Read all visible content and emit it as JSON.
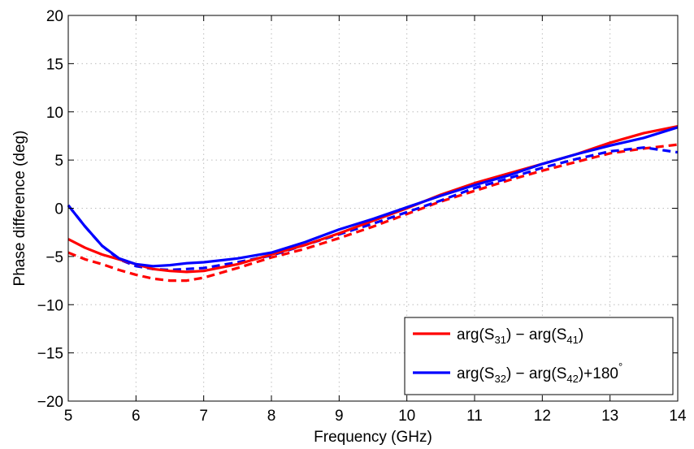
{
  "chart_data": {
    "type": "line",
    "xlabel": "Frequency (GHz)",
    "ylabel": "Phase difference (deg)",
    "xlim": [
      5,
      14
    ],
    "ylim": [
      -20,
      20
    ],
    "x_ticks": [
      5,
      6,
      7,
      8,
      9,
      10,
      11,
      12,
      13,
      14
    ],
    "y_ticks": [
      -20,
      -15,
      -10,
      -5,
      0,
      5,
      10,
      15,
      20
    ],
    "x_tick_labels": [
      "5",
      "6",
      "7",
      "8",
      "9",
      "10",
      "11",
      "12",
      "13",
      "14"
    ],
    "y_tick_labels": [
      "−20",
      "−15",
      "−10",
      "−5",
      "0",
      "5",
      "10",
      "15",
      "20"
    ],
    "grid": true,
    "legend_position": "bottom-right",
    "series": [
      {
        "id": "red-solid",
        "color": "#ff0000",
        "style": "solid",
        "in_legend": true,
        "x": [
          5.0,
          5.25,
          5.5,
          5.75,
          6.0,
          6.25,
          6.5,
          6.75,
          7.0,
          7.5,
          8.0,
          8.5,
          9.0,
          9.5,
          10.0,
          10.5,
          11.0,
          11.5,
          12.0,
          12.5,
          13.0,
          13.5,
          14.0
        ],
        "y": [
          -3.2,
          -4.1,
          -4.8,
          -5.3,
          -5.8,
          -6.3,
          -6.5,
          -6.6,
          -6.5,
          -5.8,
          -4.8,
          -3.8,
          -2.6,
          -1.3,
          0.0,
          1.4,
          2.6,
          3.6,
          4.6,
          5.6,
          6.8,
          7.8,
          8.5
        ]
      },
      {
        "id": "blue-solid",
        "color": "#0000ff",
        "style": "solid",
        "in_legend": true,
        "x": [
          5.0,
          5.25,
          5.5,
          5.75,
          6.0,
          6.25,
          6.5,
          6.75,
          7.0,
          7.5,
          8.0,
          8.5,
          9.0,
          9.5,
          10.0,
          10.5,
          11.0,
          11.5,
          12.0,
          12.5,
          13.0,
          13.5,
          14.0
        ],
        "y": [
          0.3,
          -1.9,
          -3.9,
          -5.2,
          -5.8,
          -6.0,
          -5.9,
          -5.7,
          -5.6,
          -5.2,
          -4.6,
          -3.5,
          -2.2,
          -1.1,
          0.1,
          1.3,
          2.4,
          3.4,
          4.6,
          5.6,
          6.5,
          7.3,
          8.4
        ]
      },
      {
        "id": "red-dashed",
        "color": "#ff0000",
        "style": "dashed",
        "in_legend": false,
        "x": [
          5.0,
          5.25,
          5.5,
          5.75,
          6.0,
          6.25,
          6.5,
          6.75,
          7.0,
          7.5,
          8.0,
          8.5,
          9.0,
          9.5,
          10.0,
          10.5,
          11.0,
          11.5,
          12.0,
          12.5,
          13.0,
          13.5,
          14.0
        ],
        "y": [
          -4.6,
          -5.3,
          -5.8,
          -6.4,
          -6.9,
          -7.3,
          -7.5,
          -7.5,
          -7.2,
          -6.2,
          -5.1,
          -4.2,
          -3.1,
          -1.9,
          -0.6,
          0.7,
          1.8,
          2.9,
          3.9,
          4.8,
          5.7,
          6.2,
          6.6
        ]
      },
      {
        "id": "blue-dashed",
        "color": "#0000ff",
        "style": "dashed",
        "in_legend": false,
        "x": [
          5.0,
          5.25,
          5.5,
          5.75,
          6.0,
          6.25,
          6.5,
          6.75,
          7.0,
          7.5,
          8.0,
          8.5,
          9.0,
          9.5,
          10.0,
          10.5,
          11.0,
          11.5,
          12.0,
          12.5,
          13.0,
          13.5,
          14.0
        ],
        "y": [
          0.3,
          -1.9,
          -3.9,
          -5.3,
          -6.0,
          -6.3,
          -6.4,
          -6.3,
          -6.2,
          -5.6,
          -4.9,
          -3.8,
          -2.7,
          -1.6,
          -0.4,
          0.8,
          2.1,
          3.1,
          4.2,
          5.1,
          5.9,
          6.3,
          5.8
        ]
      }
    ],
    "legend": [
      {
        "series": "red-solid",
        "color": "#ff0000",
        "parts": [
          "arg(S",
          "31",
          ") − arg(S",
          "41",
          ")"
        ]
      },
      {
        "series": "blue-solid",
        "color": "#0000ff",
        "parts": [
          "arg(S",
          "32",
          ") − arg(S",
          "42",
          ")+180",
          "°"
        ]
      }
    ]
  }
}
